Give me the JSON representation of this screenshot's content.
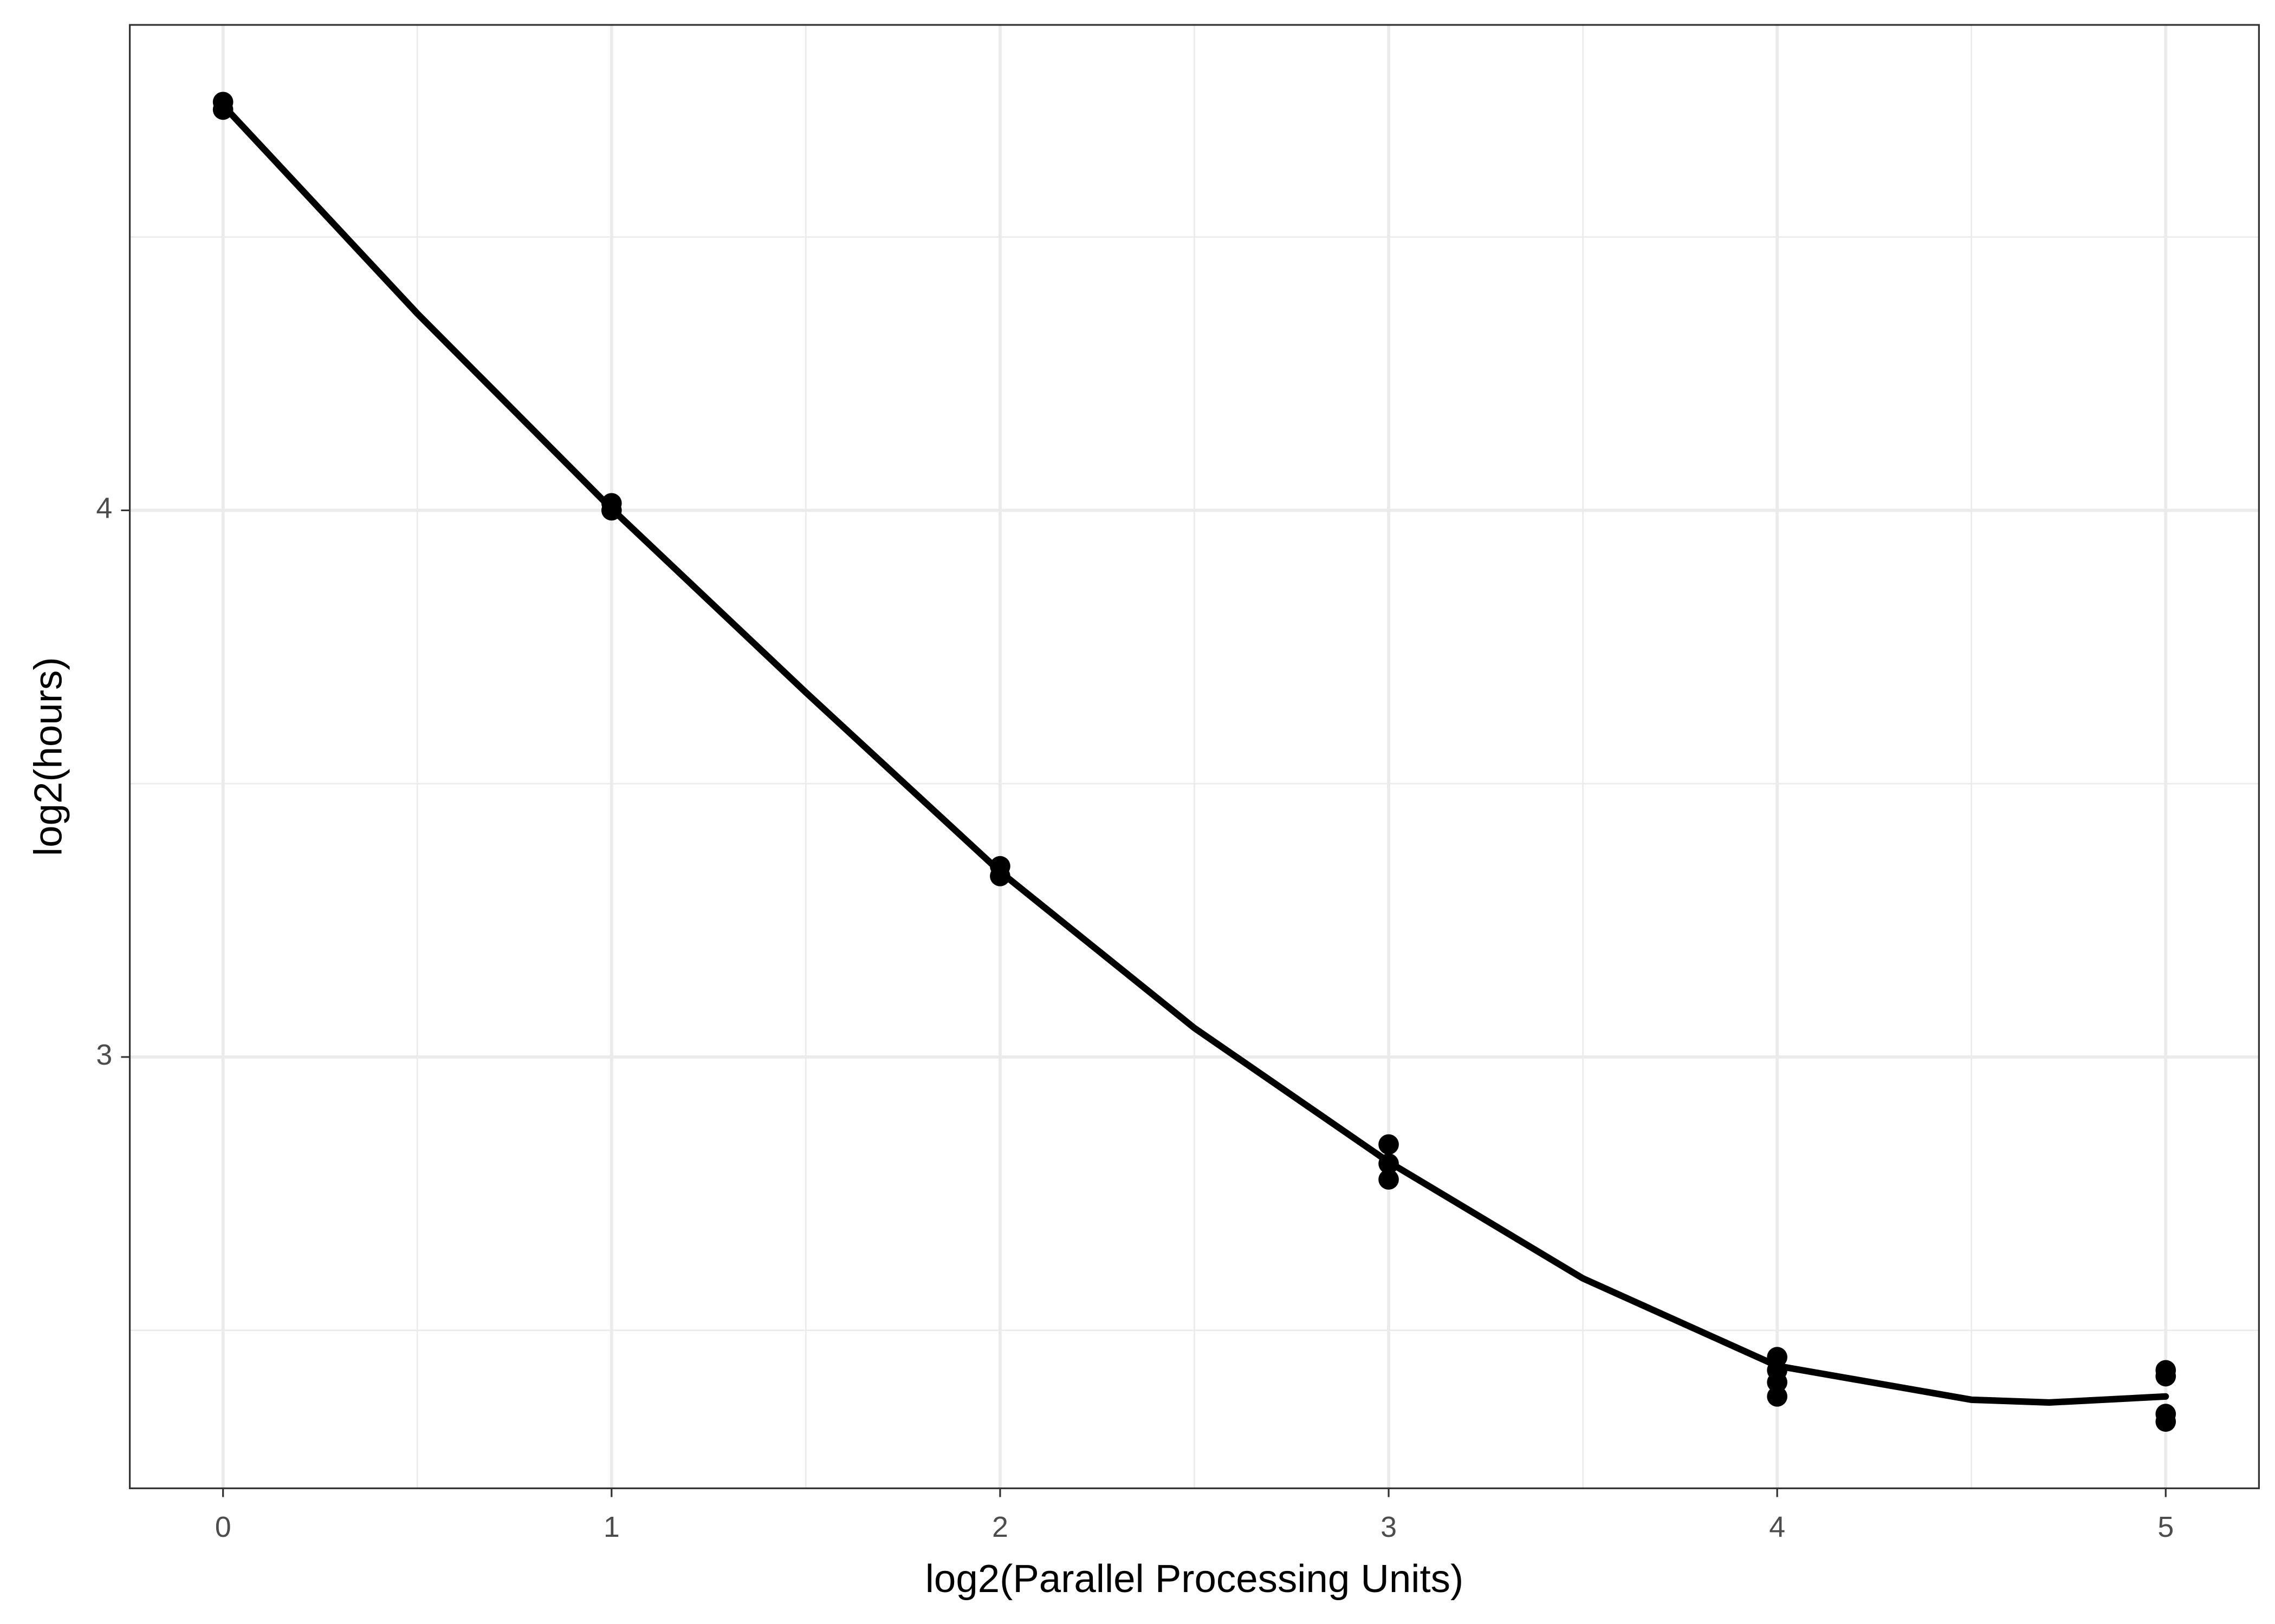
{
  "chart_data": {
    "type": "scatter",
    "x_label": "log2(Parallel Processing Units)",
    "y_label": "log2(hours)",
    "xlim": [
      -0.24,
      5.24
    ],
    "ylim": [
      2.211,
      4.888
    ],
    "xticks": [
      0,
      1,
      2,
      3,
      4,
      5
    ],
    "yticks": [
      3,
      4
    ],
    "xminor": [
      0.5,
      1.5,
      2.5,
      3.5,
      4.5
    ],
    "yminor": [
      2.5,
      3.5,
      4.5
    ],
    "grid": true,
    "points": {
      "color": "#000000",
      "x": [
        0,
        0,
        1,
        1,
        2,
        2,
        3,
        3,
        3,
        4,
        4,
        4,
        4,
        5,
        5,
        5,
        5
      ],
      "y": [
        4.747,
        4.733,
        4.013,
        4.0,
        3.349,
        3.331,
        2.84,
        2.805,
        2.776,
        2.451,
        2.427,
        2.405,
        2.379,
        2.427,
        2.416,
        2.347,
        2.333
      ]
    },
    "curve": {
      "color": "#000000",
      "x": [
        0,
        0.5,
        1,
        1.5,
        2,
        2.5,
        3,
        3.5,
        4,
        4.5,
        4.7,
        5
      ],
      "y": [
        4.741,
        4.36,
        4.003,
        3.667,
        3.339,
        3.053,
        2.808,
        2.595,
        2.435,
        2.373,
        2.368,
        2.379
      ]
    }
  }
}
